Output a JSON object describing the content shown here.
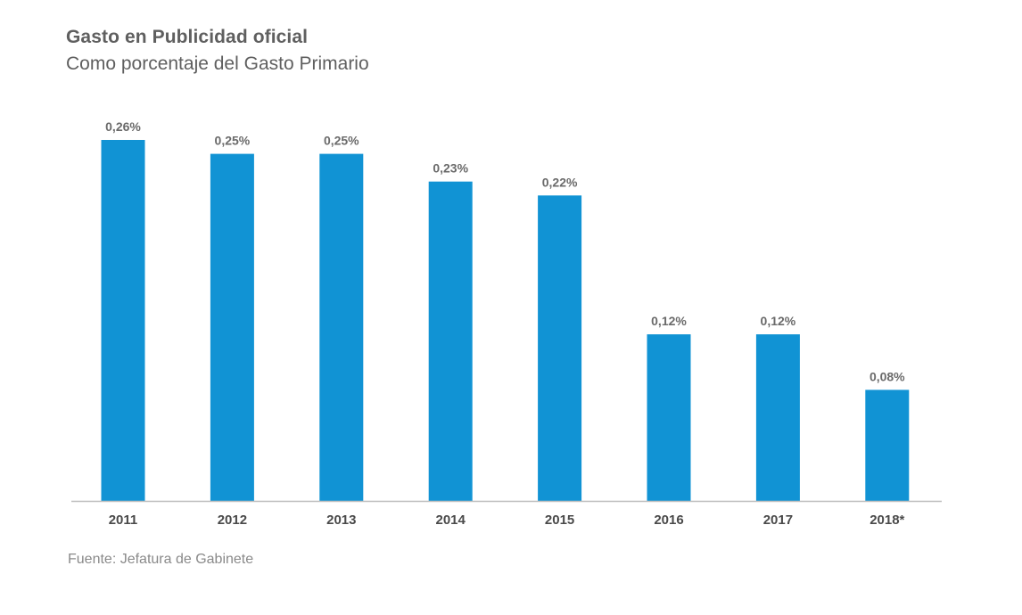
{
  "chart_data": {
    "type": "bar",
    "title": "Gasto en Publicidad oficial",
    "subtitle": "Como porcentaje del Gasto Primario",
    "categories": [
      "2011",
      "2012",
      "2013",
      "2014",
      "2015",
      "2016",
      "2017",
      "2018*"
    ],
    "values": [
      0.26,
      0.25,
      0.25,
      0.23,
      0.22,
      0.12,
      0.12,
      0.08
    ],
    "data_labels": [
      "0,26%",
      "0,25%",
      "0,25%",
      "0,23%",
      "0,22%",
      "0,12%",
      "0,12%",
      "0,08%"
    ],
    "xlabel": "",
    "ylabel": "",
    "ylim": [
      0,
      0.26
    ],
    "grid": false,
    "legend": "none",
    "bar_color": "#1193d4",
    "axis_color": "#bdbdbd",
    "source": "Fuente: Jefatura de Gabinete"
  }
}
